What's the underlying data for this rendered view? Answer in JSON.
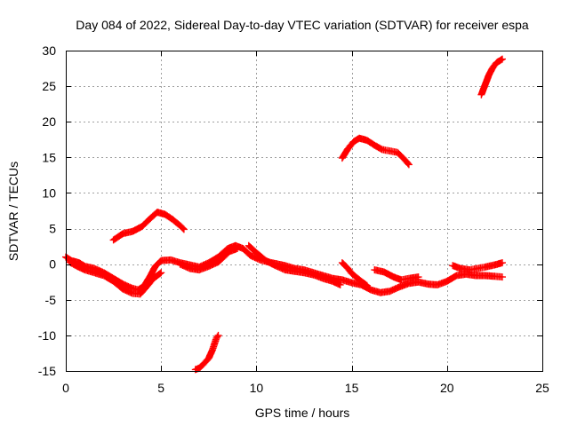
{
  "chart_data": {
    "type": "scatter",
    "title": "Day 084 of 2022, Sidereal Day-to-day VTEC variation (SDTVAR) for receiver espa",
    "xlabel": "GPS time / hours",
    "ylabel": "SDTVAR / TECUs",
    "xlim": [
      0,
      25
    ],
    "ylim": [
      -15,
      30
    ],
    "xticks": [
      0,
      5,
      10,
      15,
      20,
      25
    ],
    "yticks": [
      -15,
      -10,
      -5,
      0,
      5,
      10,
      15,
      20,
      25,
      30
    ],
    "grid": true,
    "series": [
      {
        "name": "SDTVAR",
        "color": "#ff0000",
        "marker": "plus",
        "segments": [
          [
            [
              0.0,
              1.0
            ],
            [
              0.3,
              0.5
            ],
            [
              0.7,
              0.2
            ],
            [
              1.0,
              -0.3
            ],
            [
              1.5,
              -0.6
            ],
            [
              2.0,
              -1.2
            ],
            [
              2.5,
              -2.0
            ],
            [
              3.0,
              -2.8
            ],
            [
              3.5,
              -3.4
            ],
            [
              3.8,
              -3.6
            ],
            [
              4.1,
              -3.1
            ],
            [
              4.4,
              -1.8
            ],
            [
              4.7,
              -0.3
            ],
            [
              5.0,
              0.5
            ],
            [
              5.5,
              0.6
            ],
            [
              6.0,
              0.2
            ],
            [
              6.5,
              -0.1
            ],
            [
              7.0,
              -0.4
            ],
            [
              7.5,
              0.2
            ],
            [
              8.0,
              1.0
            ],
            [
              8.5,
              2.2
            ],
            [
              8.9,
              2.6
            ],
            [
              9.3,
              2.2
            ],
            [
              9.7,
              1.2
            ],
            [
              10.2,
              0.6
            ],
            [
              10.8,
              0.2
            ],
            [
              11.5,
              -0.2
            ],
            [
              12.0,
              -0.6
            ],
            [
              12.5,
              -0.8
            ],
            [
              13.0,
              -1.2
            ],
            [
              13.5,
              -1.6
            ],
            [
              14.0,
              -2.0
            ],
            [
              14.5,
              -2.2
            ],
            [
              15.0,
              -2.6
            ],
            [
              15.5,
              -2.9
            ],
            [
              16.0,
              -3.6
            ],
            [
              16.5,
              -4.0
            ],
            [
              17.0,
              -3.8
            ],
            [
              17.5,
              -3.2
            ],
            [
              18.0,
              -2.7
            ],
            [
              18.5,
              -2.5
            ],
            [
              19.0,
              -2.8
            ],
            [
              19.5,
              -2.9
            ],
            [
              20.0,
              -2.4
            ],
            [
              20.5,
              -1.6
            ],
            [
              21.0,
              -1.4
            ],
            [
              21.5,
              -1.6
            ],
            [
              22.0,
              -1.6
            ],
            [
              22.5,
              -1.7
            ],
            [
              22.9,
              -1.8
            ]
          ],
          [
            [
              0.2,
              0.3
            ],
            [
              0.6,
              -0.3
            ],
            [
              1.0,
              -0.8
            ],
            [
              1.5,
              -1.2
            ],
            [
              2.0,
              -1.6
            ],
            [
              2.5,
              -2.4
            ],
            [
              3.0,
              -3.5
            ],
            [
              3.5,
              -4.1
            ],
            [
              3.9,
              -4.2
            ],
            [
              4.2,
              -3.3
            ],
            [
              4.6,
              -2.0
            ],
            [
              5.0,
              -1.2
            ]
          ],
          [
            [
              6.0,
              0.0
            ],
            [
              6.5,
              -0.6
            ],
            [
              7.0,
              -0.8
            ],
            [
              7.5,
              -0.3
            ],
            [
              8.0,
              0.3
            ],
            [
              8.6,
              1.8
            ],
            [
              9.0,
              2.2
            ]
          ],
          [
            [
              9.6,
              2.6
            ],
            [
              10.0,
              1.6
            ],
            [
              10.5,
              0.5
            ],
            [
              11.0,
              -0.2
            ],
            [
              11.5,
              -0.8
            ],
            [
              12.0,
              -1.0
            ],
            [
              12.5,
              -1.2
            ],
            [
              13.0,
              -1.5
            ],
            [
              13.5,
              -2.0
            ],
            [
              14.0,
              -2.4
            ],
            [
              14.4,
              -2.9
            ]
          ],
          [
            [
              14.5,
              0.2
            ],
            [
              14.8,
              -0.6
            ],
            [
              15.0,
              -1.3
            ],
            [
              15.4,
              -2.2
            ],
            [
              15.8,
              -3.0
            ]
          ],
          [
            [
              16.2,
              -0.8
            ],
            [
              16.7,
              -1.1
            ],
            [
              17.2,
              -1.8
            ],
            [
              17.6,
              -2.2
            ],
            [
              18.0,
              -2.0
            ],
            [
              18.5,
              -1.8
            ]
          ],
          [
            [
              20.3,
              -0.2
            ],
            [
              20.7,
              -0.6
            ],
            [
              21.2,
              -0.8
            ],
            [
              21.6,
              -0.6
            ],
            [
              22.0,
              -0.4
            ],
            [
              22.5,
              -0.1
            ],
            [
              22.9,
              0.2
            ]
          ],
          [
            [
              2.5,
              3.4
            ],
            [
              3.0,
              4.3
            ],
            [
              3.5,
              4.6
            ],
            [
              4.0,
              5.3
            ],
            [
              4.5,
              6.6
            ],
            [
              4.8,
              7.3
            ],
            [
              5.2,
              7.0
            ],
            [
              5.6,
              6.3
            ],
            [
              6.0,
              5.4
            ],
            [
              6.2,
              4.9
            ]
          ],
          [
            [
              14.5,
              14.9
            ],
            [
              14.8,
              16.2
            ],
            [
              15.1,
              17.2
            ],
            [
              15.4,
              17.7
            ],
            [
              15.8,
              17.4
            ],
            [
              16.2,
              16.7
            ],
            [
              16.6,
              16.1
            ],
            [
              17.0,
              15.9
            ],
            [
              17.4,
              15.7
            ],
            [
              17.7,
              14.9
            ],
            [
              18.0,
              14.0
            ]
          ],
          [
            [
              21.8,
              23.8
            ],
            [
              22.0,
              25.2
            ],
            [
              22.2,
              26.6
            ],
            [
              22.4,
              27.6
            ],
            [
              22.6,
              28.3
            ],
            [
              22.9,
              28.8
            ]
          ],
          [
            [
              6.8,
              -14.8
            ],
            [
              7.0,
              -14.6
            ],
            [
              7.2,
              -14.1
            ],
            [
              7.5,
              -13.2
            ],
            [
              7.7,
              -12.0
            ],
            [
              7.9,
              -10.4
            ],
            [
              8.0,
              -10.0
            ]
          ]
        ]
      }
    ]
  }
}
